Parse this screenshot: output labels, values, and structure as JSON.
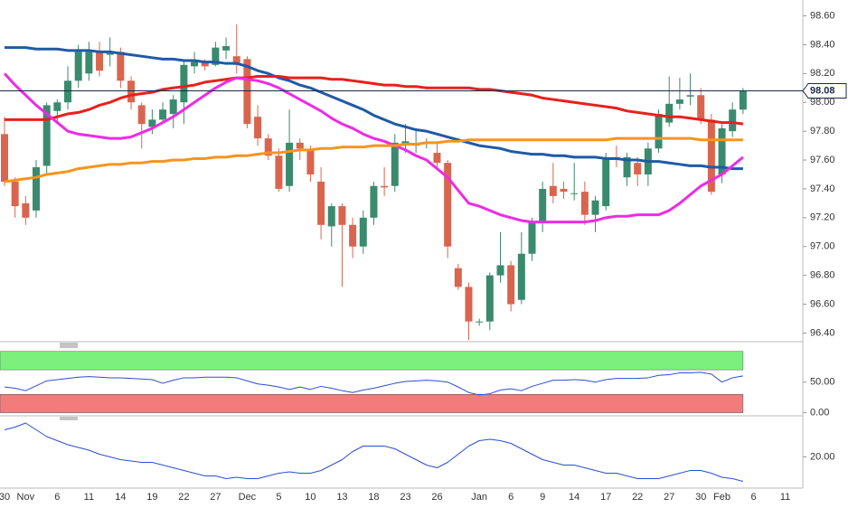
{
  "chart_data": [
    {
      "type": "candlestick",
      "categories": [
        "30",
        null,
        "Nov",
        null,
        null,
        "6",
        null,
        null,
        "11",
        null,
        null,
        "14",
        null,
        null,
        "19",
        null,
        null,
        "22",
        null,
        null,
        "27",
        null,
        null,
        "Dec",
        null,
        null,
        "5",
        null,
        null,
        "10",
        null,
        null,
        "13",
        null,
        null,
        "18",
        null,
        null,
        "23",
        null,
        null,
        "26",
        null,
        null,
        null,
        "Jan",
        null,
        null,
        "6",
        null,
        null,
        "9",
        null,
        null,
        "14",
        null,
        null,
        "17",
        null,
        null,
        "22",
        null,
        null,
        "27",
        null,
        null,
        "30",
        null,
        "Feb",
        null,
        null,
        "6",
        null,
        null,
        "11"
      ],
      "open": [
        97.78,
        97.45,
        97.3,
        97.25,
        97.56,
        97.94,
        98.0,
        98.15,
        98.2,
        98.35,
        98.33,
        98.35,
        98.15,
        97.98,
        97.83,
        97.88,
        97.92,
        98.0,
        98.25,
        98.28,
        98.26,
        98.36,
        98.32,
        98.3,
        97.9,
        97.75,
        97.63,
        97.42,
        97.72,
        97.67,
        97.45,
        97.14,
        97.28,
        97.15,
        97.0,
        97.2,
        97.42,
        97.42,
        97.7,
        97.7,
        97.72,
        97.65,
        97.58,
        96.85,
        96.72,
        96.48,
        96.48,
        96.8,
        96.87,
        96.63,
        96.95,
        97.17,
        97.42,
        97.4,
        97.37,
        97.38,
        97.22,
        97.28,
        97.62,
        97.48,
        97.58,
        97.5,
        97.68,
        97.86,
        97.99,
        98.04,
        98.05,
        97.88,
        97.5,
        97.8,
        97.95,
        null,
        null,
        null,
        null
      ],
      "high": [
        97.9,
        97.48,
        97.35,
        97.6,
        98.0,
        98.02,
        98.25,
        98.4,
        98.42,
        98.42,
        98.45,
        98.38,
        98.18,
        98.0,
        97.95,
        98.0,
        98.05,
        98.3,
        98.35,
        98.3,
        98.42,
        98.45,
        98.54,
        98.32,
        97.98,
        97.78,
        97.68,
        97.95,
        97.75,
        97.7,
        97.55,
        97.3,
        97.3,
        97.2,
        97.25,
        97.45,
        97.55,
        97.78,
        97.85,
        97.8,
        97.75,
        97.72,
        97.6,
        96.88,
        96.75,
        96.5,
        96.82,
        97.1,
        96.9,
        97.1,
        97.2,
        97.45,
        97.58,
        97.45,
        97.58,
        97.45,
        97.35,
        97.65,
        97.7,
        97.65,
        97.62,
        97.72,
        97.95,
        98.18,
        98.17,
        98.2,
        98.1,
        97.92,
        97.85,
        98.0,
        98.1,
        null,
        null,
        null,
        null
      ],
      "low": [
        97.42,
        97.2,
        97.15,
        97.2,
        97.5,
        97.85,
        97.95,
        98.1,
        98.15,
        98.18,
        98.25,
        98.1,
        97.95,
        97.68,
        97.78,
        97.85,
        97.82,
        97.85,
        98.2,
        98.22,
        98.25,
        98.3,
        98.2,
        97.82,
        97.7,
        97.6,
        97.38,
        97.38,
        97.6,
        97.45,
        97.05,
        97.0,
        96.72,
        96.92,
        96.95,
        97.15,
        97.35,
        97.38,
        97.65,
        97.65,
        97.68,
        97.55,
        96.92,
        96.7,
        96.35,
        96.45,
        96.42,
        96.75,
        96.55,
        96.6,
        96.9,
        97.1,
        97.3,
        97.33,
        97.32,
        97.15,
        97.1,
        97.25,
        97.55,
        97.42,
        97.42,
        97.42,
        97.65,
        97.83,
        97.95,
        97.98,
        97.85,
        97.36,
        97.44,
        97.76,
        97.92,
        null,
        null,
        null,
        null
      ],
      "close": [
        97.45,
        97.28,
        97.2,
        97.55,
        97.98,
        98.0,
        98.15,
        98.35,
        98.35,
        98.22,
        98.34,
        98.15,
        98.0,
        97.85,
        97.88,
        97.95,
        98.02,
        98.26,
        98.28,
        98.25,
        98.38,
        98.39,
        98.26,
        97.85,
        97.75,
        97.63,
        97.4,
        97.72,
        97.68,
        97.5,
        97.15,
        97.28,
        97.15,
        97.0,
        97.2,
        97.42,
        97.41,
        97.72,
        97.73,
        97.71,
        97.72,
        97.58,
        97.0,
        96.72,
        96.48,
        96.48,
        96.8,
        96.87,
        96.6,
        96.95,
        97.17,
        97.4,
        97.35,
        97.38,
        97.37,
        97.22,
        97.32,
        97.62,
        97.6,
        97.62,
        97.5,
        97.68,
        97.92,
        97.99,
        98.02,
        98.05,
        97.88,
        97.38,
        97.82,
        97.95,
        98.08,
        null,
        null,
        null,
        null
      ],
      "up_color": "#3a8a6e",
      "down_color": "#d9654f",
      "series": [
        {
          "color": "#1f5aa6",
          "values": [
            98.38,
            98.38,
            98.38,
            98.37,
            98.37,
            98.37,
            98.36,
            98.36,
            98.36,
            98.35,
            98.35,
            98.34,
            98.33,
            98.32,
            98.31,
            98.3,
            98.3,
            98.29,
            98.29,
            98.28,
            98.28,
            98.27,
            98.27,
            98.25,
            98.22,
            98.2,
            98.17,
            98.15,
            98.12,
            98.1,
            98.07,
            98.04,
            98.01,
            97.98,
            97.95,
            97.91,
            97.88,
            97.85,
            97.83,
            97.81,
            97.8,
            97.78,
            97.76,
            97.74,
            97.72,
            97.7,
            97.69,
            97.68,
            97.66,
            97.65,
            97.64,
            97.64,
            97.63,
            97.63,
            97.62,
            97.62,
            97.62,
            97.61,
            97.61,
            97.6,
            97.6,
            97.59,
            97.59,
            97.58,
            97.57,
            97.56,
            97.56,
            97.55,
            97.55,
            97.54,
            97.54,
            null,
            null,
            null,
            null
          ]
        },
        {
          "color": "#e8201c",
          "values": [
            97.88,
            97.88,
            97.88,
            97.88,
            97.88,
            97.9,
            97.92,
            97.93,
            97.95,
            97.98,
            98.0,
            98.03,
            98.05,
            98.06,
            98.07,
            98.09,
            98.1,
            98.11,
            98.12,
            98.14,
            98.15,
            98.16,
            98.17,
            98.17,
            98.18,
            98.18,
            98.18,
            98.17,
            98.17,
            98.17,
            98.17,
            98.16,
            98.16,
            98.15,
            98.14,
            98.13,
            98.12,
            98.12,
            98.11,
            98.11,
            98.1,
            98.1,
            98.1,
            98.1,
            98.1,
            98.09,
            98.09,
            98.08,
            98.07,
            98.06,
            98.05,
            98.03,
            98.02,
            98.01,
            98.0,
            97.99,
            97.98,
            97.97,
            97.96,
            97.94,
            97.93,
            97.92,
            97.91,
            97.9,
            97.9,
            97.89,
            97.88,
            97.87,
            97.86,
            97.86,
            97.85,
            null,
            null,
            null,
            null
          ]
        },
        {
          "color": "#ee2ae6",
          "values": [
            98.2,
            98.12,
            98.05,
            97.98,
            97.92,
            97.86,
            97.8,
            97.78,
            97.77,
            97.76,
            97.75,
            97.75,
            97.76,
            97.79,
            97.82,
            97.86,
            97.9,
            97.95,
            98.0,
            98.05,
            98.1,
            98.14,
            98.17,
            98.16,
            98.15,
            98.13,
            98.1,
            98.06,
            98.02,
            97.98,
            97.94,
            97.89,
            97.85,
            97.82,
            97.78,
            97.75,
            97.73,
            97.7,
            97.67,
            97.63,
            97.6,
            97.54,
            97.48,
            97.39,
            97.3,
            97.28,
            97.25,
            97.22,
            97.2,
            97.18,
            97.17,
            97.17,
            97.17,
            97.17,
            97.17,
            97.17,
            97.18,
            97.2,
            97.21,
            97.21,
            97.22,
            97.22,
            97.22,
            97.25,
            97.3,
            97.36,
            97.42,
            97.46,
            97.5,
            97.56,
            97.62,
            null,
            null,
            null,
            null
          ]
        },
        {
          "color": "#f7941d",
          "values": [
            97.45,
            97.46,
            97.47,
            97.48,
            97.5,
            97.51,
            97.52,
            97.54,
            97.55,
            97.56,
            97.57,
            97.57,
            97.58,
            97.58,
            97.59,
            97.59,
            97.6,
            97.6,
            97.61,
            97.61,
            97.62,
            97.62,
            97.63,
            97.63,
            97.64,
            97.65,
            97.65,
            97.66,
            97.67,
            97.67,
            97.68,
            97.68,
            97.69,
            97.69,
            97.69,
            97.7,
            97.7,
            97.7,
            97.71,
            97.71,
            97.72,
            97.72,
            97.73,
            97.73,
            97.74,
            97.74,
            97.74,
            97.74,
            97.74,
            97.74,
            97.74,
            97.74,
            97.74,
            97.74,
            97.74,
            97.74,
            97.74,
            97.74,
            97.75,
            97.75,
            97.75,
            97.75,
            97.75,
            97.75,
            97.75,
            97.75,
            97.74,
            97.74,
            97.74,
            97.74,
            97.74,
            null,
            null,
            null,
            null
          ]
        }
      ],
      "last_value": 98.08,
      "last_color": "#1b2a4a",
      "ylim": [
        96.34,
        98.71
      ],
      "yticks": [
        {
          "value": 96.4,
          "label": "96.40"
        },
        {
          "value": 96.6,
          "label": "96.60"
        },
        {
          "value": 96.8,
          "label": "96.80"
        },
        {
          "value": 97.0,
          "label": "97.00"
        },
        {
          "value": 97.2,
          "label": "97.20"
        },
        {
          "value": 97.4,
          "label": "97.40"
        },
        {
          "value": 97.6,
          "label": "97.60"
        },
        {
          "value": 97.8,
          "label": "97.80"
        },
        {
          "value": 98.0,
          "label": "98.00"
        },
        {
          "value": 98.2,
          "label": "98.20"
        },
        {
          "value": 98.4,
          "label": "98.40"
        },
        {
          "value": 98.6,
          "label": "98.60"
        }
      ]
    },
    {
      "type": "line",
      "bands": [
        {
          "from": 70,
          "to": 100,
          "color": "#7cf07c"
        },
        {
          "from": 0,
          "to": 30,
          "color": "#f07c7c"
        }
      ],
      "series": [
        {
          "color": "#2a4fd0",
          "values": [
            42,
            40,
            36,
            44,
            52,
            54,
            56,
            58,
            59,
            58,
            57,
            57,
            56,
            55,
            54,
            48,
            53,
            57,
            57,
            58,
            58,
            58,
            57,
            52,
            47,
            45,
            42,
            38,
            42,
            38,
            43,
            40,
            36,
            33,
            37,
            40,
            44,
            48,
            51,
            52,
            53,
            52,
            50,
            42,
            33,
            29,
            31,
            37,
            39,
            36,
            43,
            48,
            53,
            53,
            54,
            53,
            50,
            54,
            56,
            56,
            56,
            57,
            61,
            62,
            65,
            65,
            66,
            63,
            50,
            57,
            60,
            null,
            null,
            null,
            null
          ]
        }
      ],
      "ylim": [
        -5,
        110
      ],
      "yticks": [
        {
          "value": 0,
          "label": "0.00"
        },
        {
          "value": 50,
          "label": "50.00"
        }
      ]
    },
    {
      "type": "line",
      "series": [
        {
          "color": "#2a4fd0",
          "values": [
            40,
            42,
            45,
            40,
            35,
            32,
            29,
            27,
            25,
            22,
            20,
            18,
            17,
            16,
            16,
            14,
            12,
            10,
            8,
            6,
            6,
            4,
            5,
            4,
            4,
            6,
            8,
            9,
            8,
            8,
            10,
            14,
            18,
            24,
            28,
            28,
            28,
            26,
            22,
            18,
            14,
            12,
            16,
            22,
            28,
            32,
            33,
            32,
            30,
            26,
            22,
            18,
            16,
            14,
            14,
            12,
            10,
            8,
            8,
            6,
            4,
            4,
            4,
            6,
            8,
            10,
            10,
            8,
            5,
            4,
            2,
            null,
            null,
            null,
            null
          ]
        }
      ],
      "ylim": [
        -3,
        49
      ],
      "yticks": [
        {
          "value": 20,
          "label": "20.00"
        }
      ]
    }
  ]
}
